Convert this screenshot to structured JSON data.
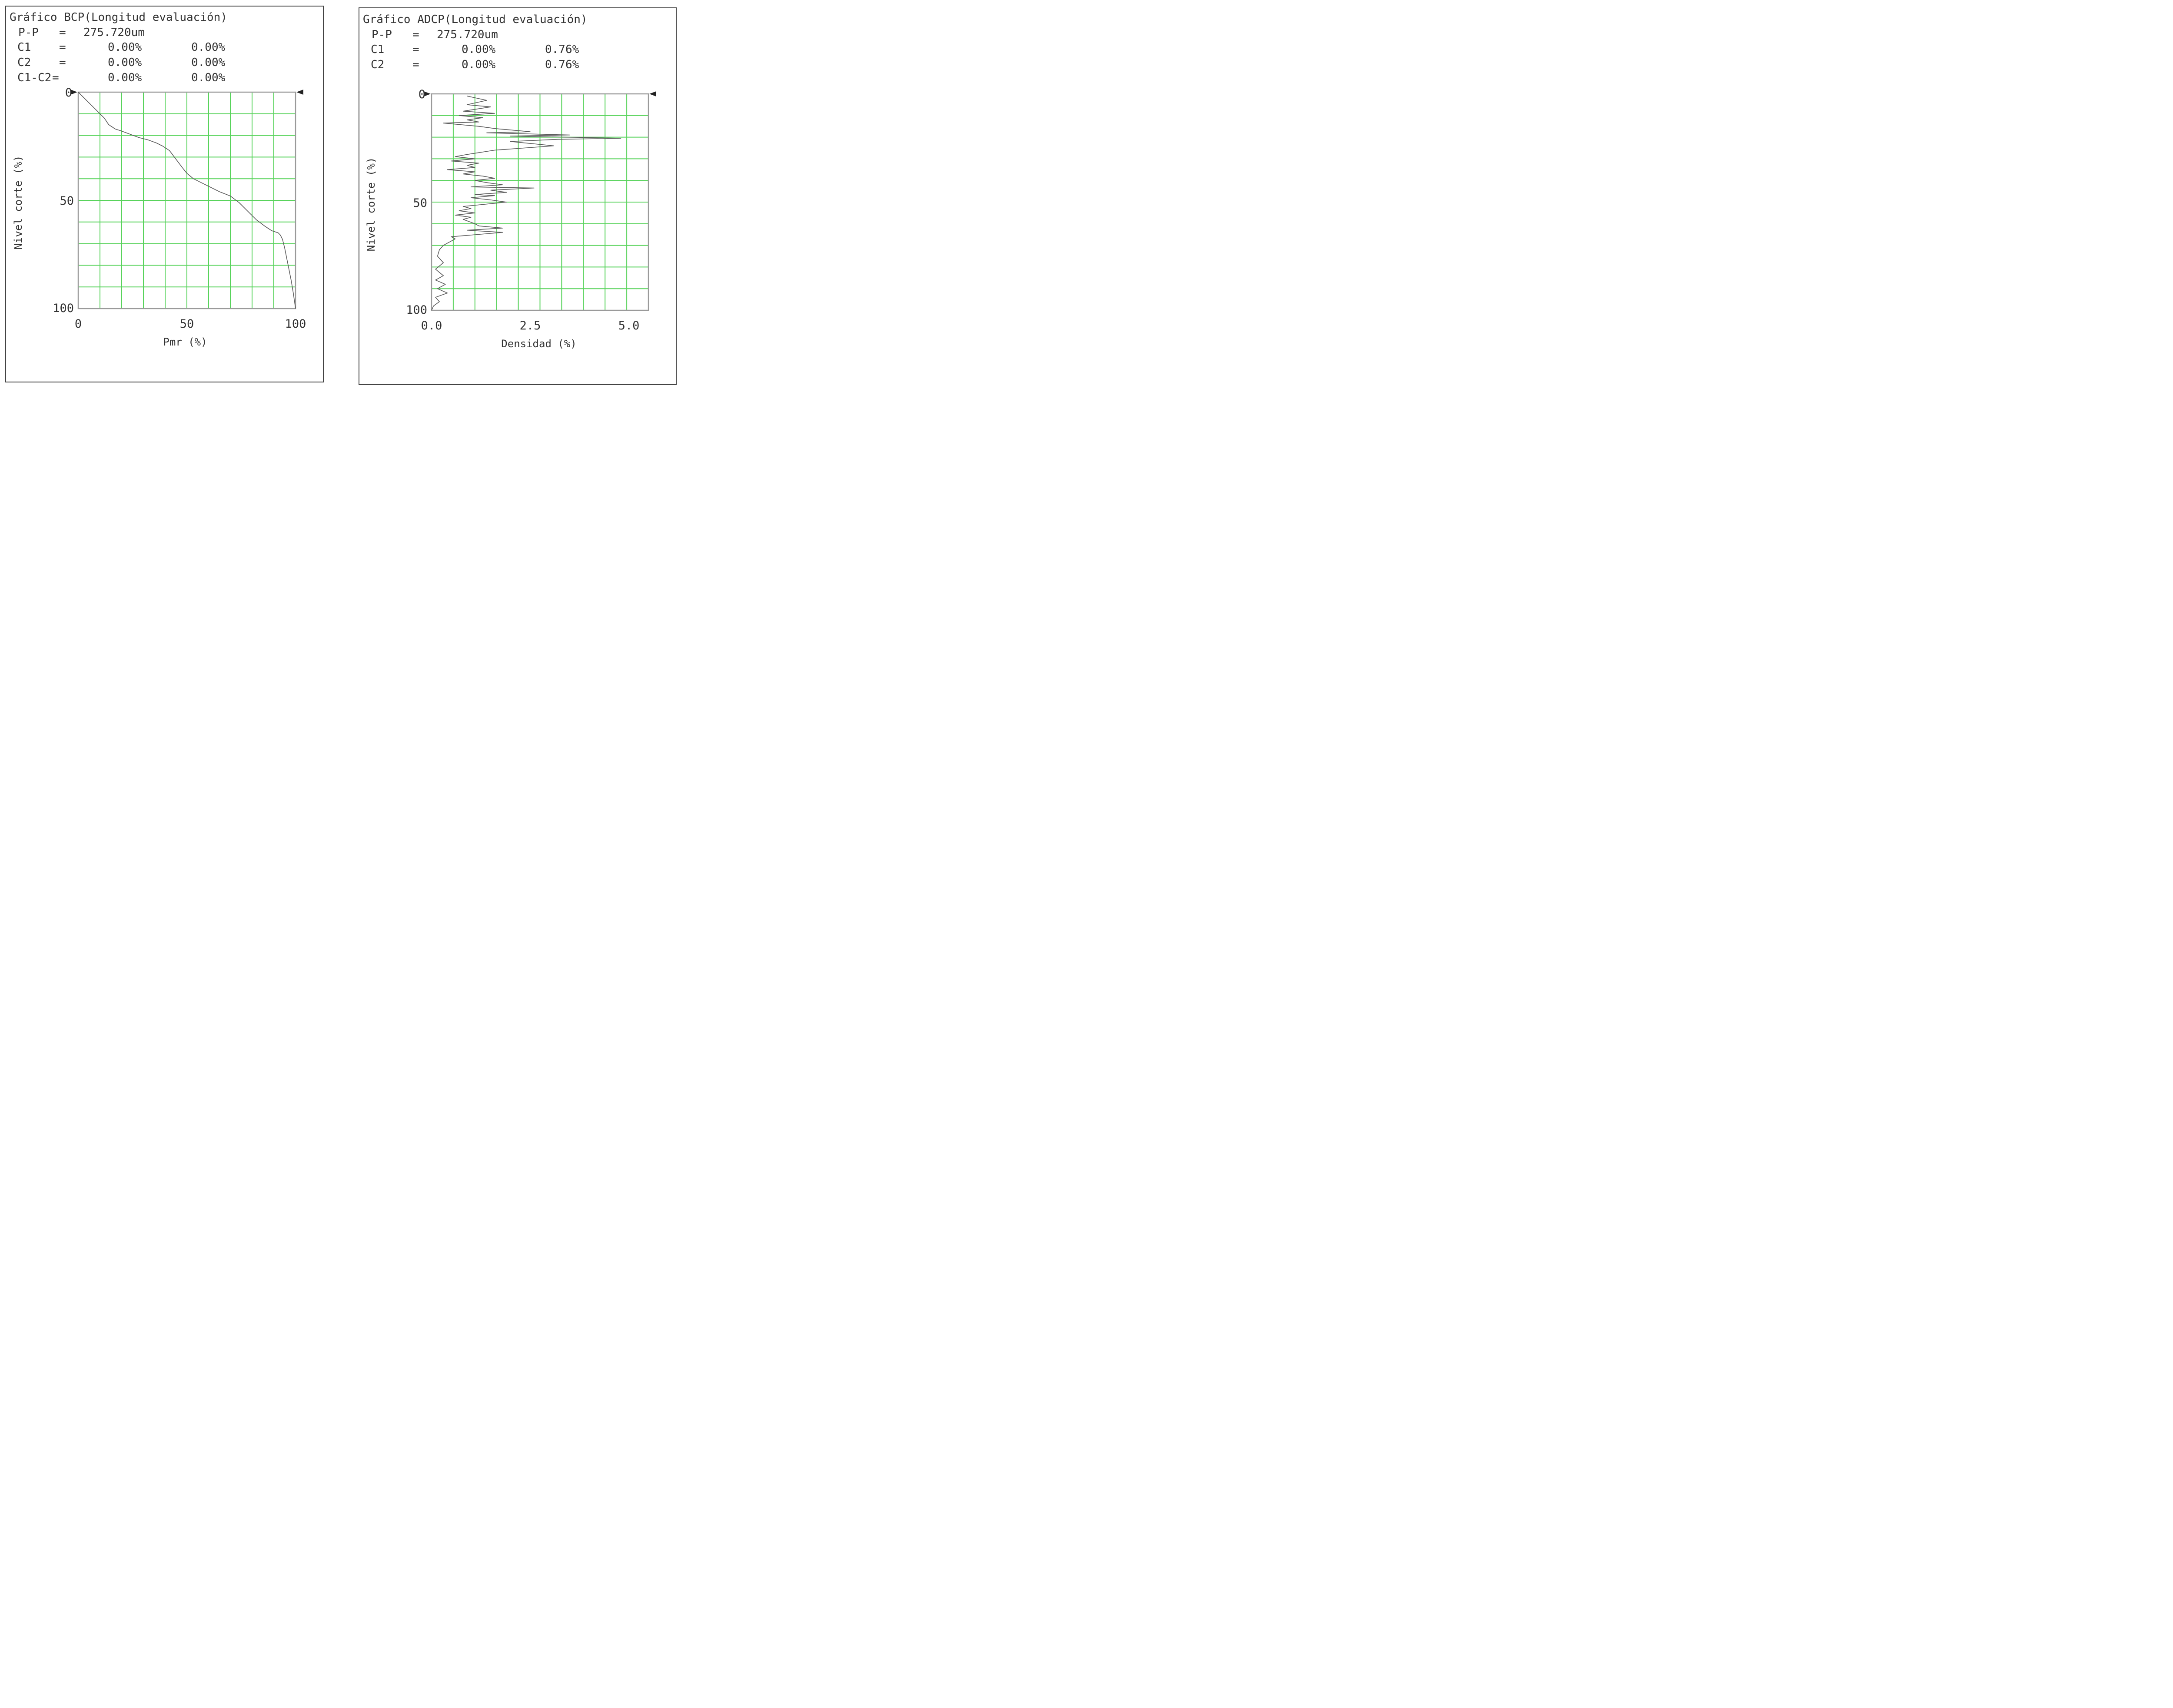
{
  "chart_data": [
    {
      "type": "line",
      "title": "Gráfico BCP(Longitud evaluación)",
      "header_rows": [
        {
          "label": "P-P",
          "eq": "=",
          "v1": "275.720um",
          "v2": ""
        },
        {
          "label": "C1",
          "eq": "=",
          "v1": "0.00%",
          "v2": "0.00%"
        },
        {
          "label": "C2",
          "eq": "=",
          "v1": "0.00%",
          "v2": "0.00%"
        },
        {
          "label": "C1-C2",
          "eq": "=",
          "v1": "0.00%",
          "v2": "0.00%"
        }
      ],
      "xlabel": "Pmr (%)",
      "ylabel": "Nivel corte (%)",
      "xlim": [
        0,
        100
      ],
      "ylim": [
        0,
        100
      ],
      "y_inverted": true,
      "x_ticks": [
        "0",
        "50",
        "100"
      ],
      "y_ticks": [
        "0",
        "50",
        "100"
      ],
      "grid": true,
      "series": [
        {
          "name": "BCP",
          "x": [
            0,
            2,
            5,
            8,
            10,
            12,
            14,
            17,
            20,
            24,
            28,
            32,
            36,
            39,
            42,
            45,
            48,
            50,
            53,
            57,
            61,
            65,
            70,
            74,
            78,
            82,
            86,
            89,
            92,
            93,
            94,
            95,
            96,
            97,
            98,
            99,
            100
          ],
          "y": [
            0,
            2,
            5,
            8,
            10,
            12,
            15,
            17,
            18,
            19.5,
            21,
            22,
            23.5,
            25,
            27,
            31,
            35,
            37.5,
            40,
            42,
            44,
            46,
            48,
            51,
            55,
            59,
            62,
            64,
            65,
            66,
            68,
            72,
            77,
            82,
            87,
            93,
            100
          ]
        }
      ]
    },
    {
      "type": "line",
      "title": "Gráfico ADCP(Longitud evaluación)",
      "header_rows": [
        {
          "label": "P-P",
          "eq": "=",
          "v1": "275.720um",
          "v2": ""
        },
        {
          "label": "C1",
          "eq": "=",
          "v1": "0.00%",
          "v2": "0.76%"
        },
        {
          "label": "C2",
          "eq": "=",
          "v1": "0.00%",
          "v2": "0.76%"
        }
      ],
      "xlabel": "Densidad (%)",
      "ylabel": "Nivel corte (%)",
      "xlim": [
        0,
        5.5
      ],
      "ylim": [
        0,
        100
      ],
      "y_inverted": true,
      "x_ticks": [
        "0.0",
        "2.5",
        "5.0"
      ],
      "x_tick_values": [
        0,
        2.5,
        5.0
      ],
      "y_ticks": [
        "0",
        "50",
        "100"
      ],
      "grid": true,
      "series": [
        {
          "name": "ADCP",
          "x": [
            0.9,
            1.4,
            0.9,
            1.5,
            0.8,
            1.6,
            0.7,
            1.3,
            0.9,
            1.2,
            0.3,
            0.6,
            0.9,
            1.2,
            1.6,
            2.5,
            1.4,
            3.5,
            2.0,
            4.8,
            3.2,
            2.0,
            3.1,
            1.6,
            0.9,
            0.6,
            1.1,
            0.5,
            1.2,
            0.9,
            1.1,
            0.4,
            1.1,
            0.8,
            1.3,
            1.6,
            1.1,
            1.4,
            1.8,
            1.0,
            2.6,
            1.5,
            1.9,
            1.1,
            1.6,
            1.0,
            1.5,
            1.9,
            0.8,
            1.0,
            0.7,
            1.1,
            0.6,
            1.0,
            0.8,
            1.1,
            1.2,
            1.8,
            0.9,
            1.8,
            0.5,
            0.6,
            0.3,
            0.2,
            0.15,
            0.3,
            0.1,
            0.3,
            0.1,
            0.35,
            0.15,
            0.4,
            0.1,
            0.2,
            0.05,
            0.0
          ],
          "y": [
            1,
            3,
            5,
            6,
            8,
            9,
            10,
            11,
            12,
            13,
            13.5,
            14,
            14.5,
            15,
            16,
            17.5,
            18,
            19,
            19.5,
            20.5,
            21,
            22,
            24,
            26,
            28,
            29,
            30,
            31,
            32,
            33,
            34,
            35,
            36,
            37,
            38,
            39,
            40,
            41,
            42,
            43,
            43.5,
            44.5,
            45.5,
            46.5,
            47,
            48,
            49,
            50,
            52,
            53,
            54,
            55,
            56,
            57,
            58,
            60,
            61,
            62,
            63,
            64,
            66,
            67,
            70,
            72,
            75,
            78,
            81,
            84,
            86,
            88,
            90,
            92,
            94,
            96,
            98,
            100
          ]
        }
      ]
    }
  ]
}
